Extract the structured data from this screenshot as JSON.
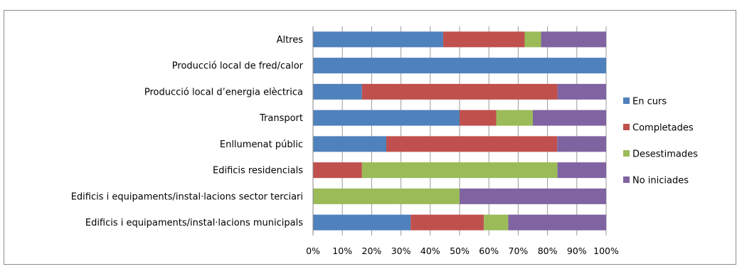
{
  "chart_data": {
    "type": "bar",
    "orientation": "horizontal",
    "stacked": "percent",
    "categories": [
      "Altres",
      "Producció local de fred/calor",
      "Producció local d’energia elèctrica",
      "Transport",
      "Enllumenat públic",
      "Edificis residencials",
      "Edificis i equipaments/instal·lacions sector terciari",
      "Edificis i equipaments/instal·lacions municipals"
    ],
    "series": [
      {
        "name": "En curs",
        "color": "#4f81bd",
        "values": [
          44.4,
          100,
          16.7,
          50,
          25,
          0,
          0,
          33.3
        ]
      },
      {
        "name": "Completades",
        "color": "#c0504d",
        "values": [
          27.8,
          0,
          66.7,
          12.5,
          58.3,
          16.7,
          0,
          25
        ]
      },
      {
        "name": "Desestimades",
        "color": "#9bbb59",
        "values": [
          5.6,
          0,
          0,
          12.5,
          0,
          66.7,
          50,
          8.3
        ]
      },
      {
        "name": "No iniciades",
        "color": "#8064a2",
        "values": [
          22.2,
          0,
          16.6,
          25,
          16.7,
          16.6,
          50,
          33.4
        ]
      }
    ],
    "xlim": [
      0,
      100
    ],
    "x_ticks": [
      "0%",
      "10%",
      "20%",
      "30%",
      "40%",
      "50%",
      "60%",
      "70%",
      "80%",
      "90%",
      "100%"
    ],
    "grid": "vertical",
    "legend_position": "right"
  }
}
